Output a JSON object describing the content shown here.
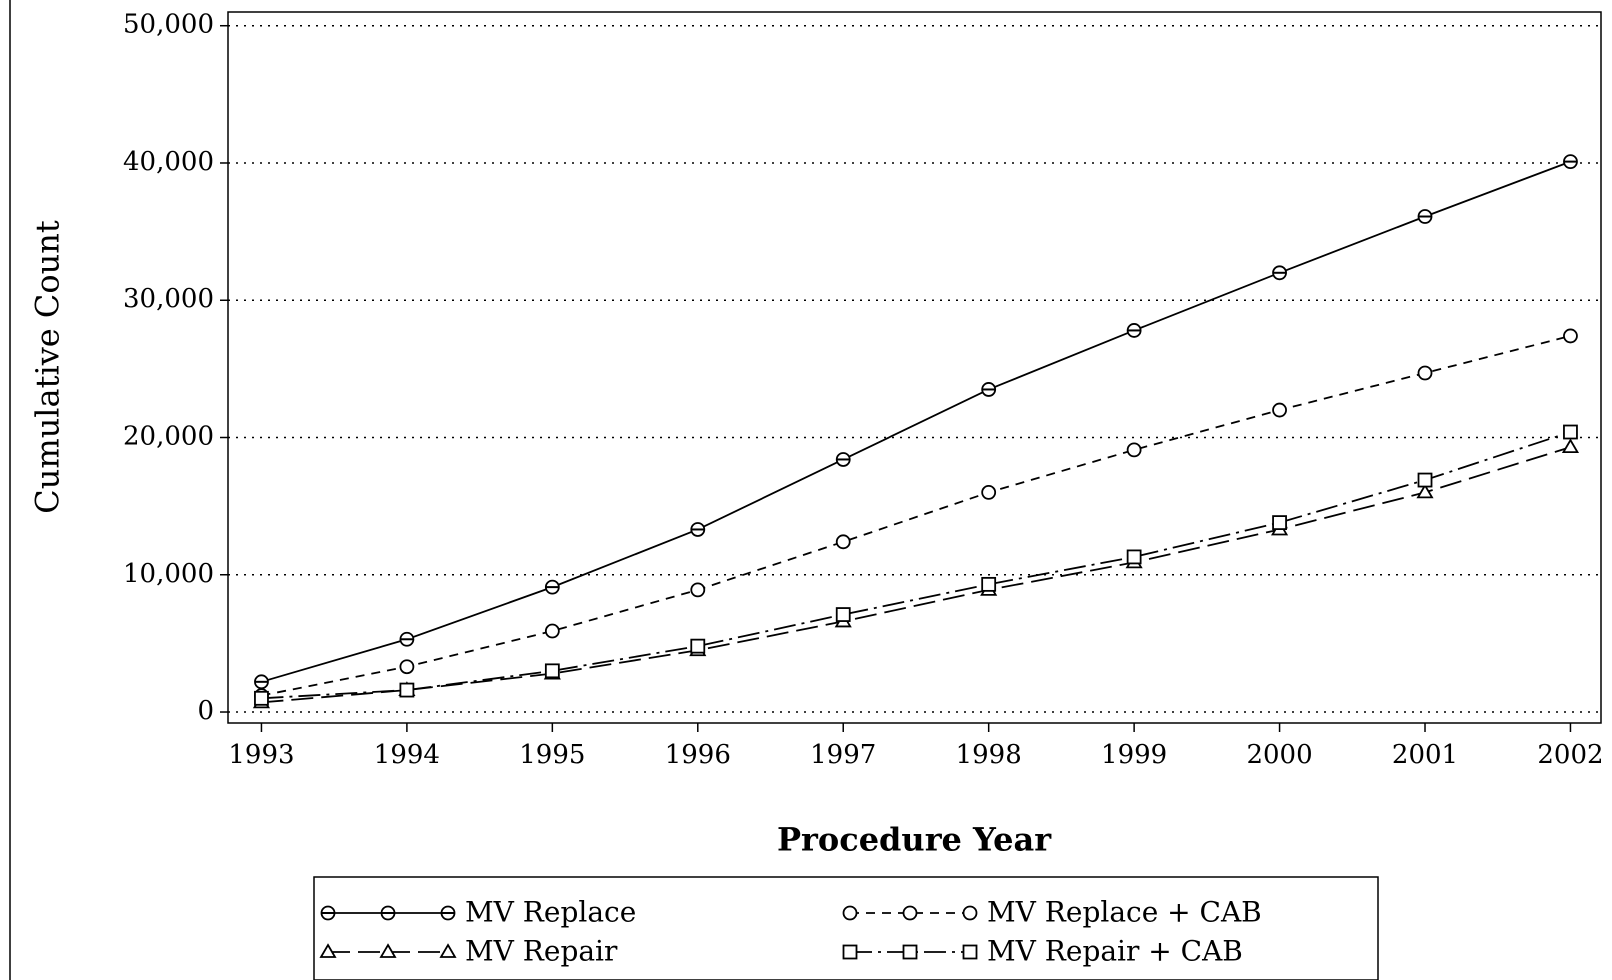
{
  "chart_data": {
    "type": "line",
    "x_label": "Procedure Year",
    "y_label": "Cumulative Count",
    "x": [
      1993,
      1994,
      1995,
      1996,
      1997,
      1998,
      1999,
      2000,
      2001,
      2002
    ],
    "xlim": [
      1992.77,
      2002.21
    ],
    "xticks": [
      1993,
      1994,
      1995,
      1996,
      1997,
      1998,
      1999,
      2000,
      2001,
      2002
    ],
    "ylim": [
      -800,
      51000
    ],
    "yticks": [
      0,
      {
        "value": 10000,
        "label": "10,000"
      },
      {
        "value": 20000,
        "label": "20,000"
      },
      {
        "value": 30000,
        "label": "30,000"
      },
      {
        "value": 40000,
        "label": "40,000"
      },
      {
        "value": 50000,
        "label": "50,000"
      }
    ],
    "grid": true,
    "series": [
      {
        "name": "MV Replace",
        "color": "#000000",
        "marker": "circle-bar",
        "dash": "solid",
        "values": [
          2200,
          5300,
          9100,
          13300,
          18400,
          23500,
          27800,
          32000,
          36100,
          40100
        ]
      },
      {
        "name": "MV Replace + CAB",
        "color": "#000000",
        "marker": "circle",
        "dash": "dashed",
        "values": [
          1200,
          3300,
          5900,
          8900,
          12400,
          16000,
          19100,
          22000,
          24700,
          27400
        ]
      },
      {
        "name": "MV Repair",
        "color": "#000000",
        "marker": "triangle",
        "dash": "longdash",
        "values": [
          700,
          1600,
          2800,
          4500,
          6600,
          8900,
          10900,
          13300,
          16000,
          19300
        ]
      },
      {
        "name": "MV Repair + CAB",
        "color": "#000000",
        "marker": "square",
        "dash": "dashdot",
        "values": [
          1000,
          1600,
          3000,
          4800,
          7100,
          9300,
          11300,
          13800,
          16900,
          20400
        ]
      }
    ]
  }
}
